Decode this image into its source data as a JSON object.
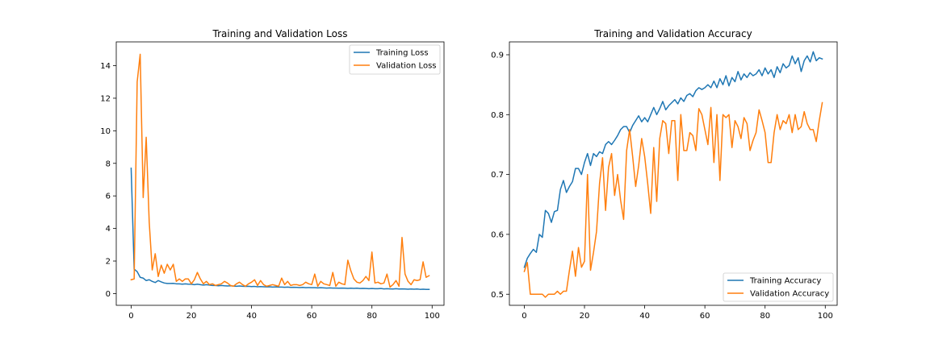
{
  "chart_data": [
    {
      "type": "line",
      "title": "Training and Validation Loss",
      "xlabel": "",
      "ylabel": "",
      "xlim": [
        -4.95,
        103.95
      ],
      "ylim": [
        -0.72,
        15.46
      ],
      "xticks": [
        0,
        20,
        40,
        60,
        80,
        100
      ],
      "yticks": [
        0,
        2,
        4,
        6,
        8,
        10,
        12,
        14
      ],
      "legend": "top-right",
      "grid": false,
      "series": [
        {
          "name": "Training Loss",
          "color": "#1f77b4",
          "x": [
            0,
            1,
            2,
            3,
            4,
            5,
            6,
            7,
            8,
            9,
            10,
            11,
            12,
            13,
            14,
            15,
            16,
            17,
            18,
            19,
            20,
            21,
            22,
            23,
            24,
            25,
            26,
            27,
            28,
            29,
            30,
            31,
            32,
            33,
            34,
            35,
            36,
            37,
            38,
            39,
            40,
            41,
            42,
            43,
            44,
            45,
            46,
            47,
            48,
            49,
            50,
            51,
            52,
            53,
            54,
            55,
            56,
            57,
            58,
            59,
            60,
            61,
            62,
            63,
            64,
            65,
            66,
            67,
            68,
            69,
            70,
            71,
            72,
            73,
            74,
            75,
            76,
            77,
            78,
            79,
            80,
            81,
            82,
            83,
            84,
            85,
            86,
            87,
            88,
            89,
            90,
            91,
            92,
            93,
            94,
            95,
            96,
            97,
            98,
            99
          ],
          "values": [
            7.7,
            1.5,
            1.35,
            1.0,
            0.95,
            0.8,
            0.85,
            0.75,
            0.68,
            0.8,
            0.72,
            0.65,
            0.62,
            0.62,
            0.63,
            0.6,
            0.6,
            0.58,
            0.6,
            0.58,
            0.57,
            0.55,
            0.58,
            0.55,
            0.52,
            0.55,
            0.52,
            0.5,
            0.5,
            0.48,
            0.5,
            0.48,
            0.47,
            0.48,
            0.46,
            0.45,
            0.47,
            0.45,
            0.44,
            0.45,
            0.43,
            0.44,
            0.42,
            0.43,
            0.42,
            0.41,
            0.42,
            0.4,
            0.41,
            0.4,
            0.4,
            0.39,
            0.4,
            0.38,
            0.39,
            0.38,
            0.37,
            0.38,
            0.36,
            0.37,
            0.36,
            0.36,
            0.35,
            0.36,
            0.35,
            0.34,
            0.35,
            0.34,
            0.34,
            0.33,
            0.34,
            0.33,
            0.32,
            0.33,
            0.32,
            0.33,
            0.31,
            0.32,
            0.31,
            0.3,
            0.31,
            0.3,
            0.3,
            0.31,
            0.29,
            0.3,
            0.29,
            0.28,
            0.3,
            0.28,
            0.29,
            0.28,
            0.27,
            0.28,
            0.27,
            0.28,
            0.26,
            0.27,
            0.26,
            0.26
          ]
        },
        {
          "name": "Validation Loss",
          "color": "#ff7f0e",
          "x": [
            0,
            1,
            2,
            3,
            4,
            5,
            6,
            7,
            8,
            9,
            10,
            11,
            12,
            13,
            14,
            15,
            16,
            17,
            18,
            19,
            20,
            21,
            22,
            23,
            24,
            25,
            26,
            27,
            28,
            29,
            30,
            31,
            32,
            33,
            34,
            35,
            36,
            37,
            38,
            39,
            40,
            41,
            42,
            43,
            44,
            45,
            46,
            47,
            48,
            49,
            50,
            51,
            52,
            53,
            54,
            55,
            56,
            57,
            58,
            59,
            60,
            61,
            62,
            63,
            64,
            65,
            66,
            67,
            68,
            69,
            70,
            71,
            72,
            73,
            74,
            75,
            76,
            77,
            78,
            79,
            80,
            81,
            82,
            83,
            84,
            85,
            86,
            87,
            88,
            89,
            90,
            91,
            92,
            93,
            94,
            95,
            96,
            97,
            98,
            99
          ],
          "values": [
            0.85,
            0.9,
            13.0,
            14.7,
            5.9,
            9.6,
            4.4,
            1.45,
            2.45,
            1.05,
            1.75,
            1.25,
            1.8,
            1.45,
            1.8,
            0.75,
            0.9,
            0.75,
            0.9,
            0.9,
            0.6,
            0.85,
            1.3,
            0.9,
            0.6,
            0.75,
            0.55,
            0.6,
            0.5,
            0.55,
            0.6,
            0.75,
            0.65,
            0.5,
            0.45,
            0.6,
            0.7,
            0.55,
            0.45,
            0.6,
            0.7,
            0.85,
            0.5,
            0.8,
            0.55,
            0.45,
            0.5,
            0.55,
            0.5,
            0.45,
            0.95,
            0.55,
            0.75,
            0.5,
            0.55,
            0.55,
            0.5,
            0.55,
            0.7,
            0.6,
            0.55,
            1.2,
            0.45,
            0.75,
            0.6,
            0.55,
            0.5,
            1.3,
            0.45,
            0.7,
            0.6,
            0.55,
            2.05,
            1.4,
            0.9,
            0.7,
            0.65,
            0.8,
            1.05,
            0.8,
            2.55,
            0.65,
            0.7,
            0.6,
            0.65,
            1.2,
            0.4,
            0.55,
            0.8,
            0.45,
            3.45,
            1.2,
            0.75,
            0.55,
            0.85,
            0.8,
            0.85,
            1.95,
            1.0,
            1.1
          ]
        }
      ]
    },
    {
      "type": "line",
      "title": "Training and Validation Accuracy",
      "xlabel": "",
      "ylabel": "",
      "xlim": [
        -4.95,
        103.95
      ],
      "ylim": [
        0.4815,
        0.9215
      ],
      "xticks": [
        0,
        20,
        40,
        60,
        80,
        100
      ],
      "yticks": [
        0.5,
        0.6,
        0.7,
        0.8,
        0.9
      ],
      "legend": "bottom-right",
      "grid": false,
      "series": [
        {
          "name": "Training Accuracy",
          "color": "#1f77b4",
          "x": [
            0,
            1,
            2,
            3,
            4,
            5,
            6,
            7,
            8,
            9,
            10,
            11,
            12,
            13,
            14,
            15,
            16,
            17,
            18,
            19,
            20,
            21,
            22,
            23,
            24,
            25,
            26,
            27,
            28,
            29,
            30,
            31,
            32,
            33,
            34,
            35,
            36,
            37,
            38,
            39,
            40,
            41,
            42,
            43,
            44,
            45,
            46,
            47,
            48,
            49,
            50,
            51,
            52,
            53,
            54,
            55,
            56,
            57,
            58,
            59,
            60,
            61,
            62,
            63,
            64,
            65,
            66,
            67,
            68,
            69,
            70,
            71,
            72,
            73,
            74,
            75,
            76,
            77,
            78,
            79,
            80,
            81,
            82,
            83,
            84,
            85,
            86,
            87,
            88,
            89,
            90,
            91,
            92,
            93,
            94,
            95,
            96,
            97,
            98,
            99
          ],
          "values": [
            0.545,
            0.56,
            0.568,
            0.575,
            0.57,
            0.6,
            0.595,
            0.64,
            0.635,
            0.62,
            0.638,
            0.64,
            0.675,
            0.69,
            0.67,
            0.68,
            0.688,
            0.71,
            0.71,
            0.7,
            0.72,
            0.735,
            0.715,
            0.735,
            0.73,
            0.738,
            0.735,
            0.75,
            0.755,
            0.75,
            0.757,
            0.765,
            0.775,
            0.78,
            0.78,
            0.77,
            0.782,
            0.79,
            0.798,
            0.788,
            0.795,
            0.788,
            0.8,
            0.812,
            0.8,
            0.81,
            0.822,
            0.808,
            0.815,
            0.82,
            0.825,
            0.818,
            0.828,
            0.822,
            0.832,
            0.835,
            0.83,
            0.84,
            0.845,
            0.842,
            0.845,
            0.85,
            0.845,
            0.856,
            0.845,
            0.86,
            0.85,
            0.865,
            0.848,
            0.862,
            0.855,
            0.872,
            0.858,
            0.868,
            0.862,
            0.87,
            0.865,
            0.868,
            0.875,
            0.865,
            0.878,
            0.868,
            0.875,
            0.862,
            0.88,
            0.87,
            0.885,
            0.878,
            0.882,
            0.898,
            0.885,
            0.895,
            0.872,
            0.89,
            0.898,
            0.888,
            0.905,
            0.89,
            0.895,
            0.893
          ]
        },
        {
          "name": "Validation Accuracy",
          "color": "#ff7f0e",
          "x": [
            0,
            1,
            2,
            3,
            4,
            5,
            6,
            7,
            8,
            9,
            10,
            11,
            12,
            13,
            14,
            15,
            16,
            17,
            18,
            19,
            20,
            21,
            22,
            23,
            24,
            25,
            26,
            27,
            28,
            29,
            30,
            31,
            32,
            33,
            34,
            35,
            36,
            37,
            38,
            39,
            40,
            41,
            42,
            43,
            44,
            45,
            46,
            47,
            48,
            49,
            50,
            51,
            52,
            53,
            54,
            55,
            56,
            57,
            58,
            59,
            60,
            61,
            62,
            63,
            64,
            65,
            66,
            67,
            68,
            69,
            70,
            71,
            72,
            73,
            74,
            75,
            76,
            77,
            78,
            79,
            80,
            81,
            82,
            83,
            84,
            85,
            86,
            87,
            88,
            89,
            90,
            91,
            92,
            93,
            94,
            95,
            96,
            97,
            98,
            99
          ],
          "values": [
            0.538,
            0.553,
            0.5,
            0.5,
            0.5,
            0.5,
            0.5,
            0.495,
            0.5,
            0.5,
            0.5,
            0.505,
            0.5,
            0.505,
            0.505,
            0.54,
            0.572,
            0.53,
            0.578,
            0.545,
            0.555,
            0.7,
            0.54,
            0.57,
            0.605,
            0.685,
            0.728,
            0.64,
            0.712,
            0.735,
            0.665,
            0.7,
            0.657,
            0.625,
            0.74,
            0.775,
            0.73,
            0.68,
            0.715,
            0.76,
            0.73,
            0.685,
            0.635,
            0.745,
            0.655,
            0.76,
            0.79,
            0.785,
            0.735,
            0.79,
            0.79,
            0.69,
            0.8,
            0.74,
            0.74,
            0.77,
            0.765,
            0.74,
            0.81,
            0.8,
            0.775,
            0.75,
            0.812,
            0.72,
            0.8,
            0.69,
            0.8,
            0.795,
            0.8,
            0.745,
            0.79,
            0.78,
            0.76,
            0.795,
            0.785,
            0.74,
            0.757,
            0.77,
            0.808,
            0.79,
            0.77,
            0.72,
            0.72,
            0.77,
            0.8,
            0.775,
            0.79,
            0.785,
            0.8,
            0.77,
            0.8,
            0.775,
            0.78,
            0.805,
            0.785,
            0.775,
            0.775,
            0.755,
            0.79,
            0.82
          ]
        }
      ]
    }
  ]
}
